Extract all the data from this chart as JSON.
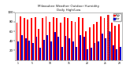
{
  "title": "Milwaukee Weather Outdoor Humidity",
  "subtitle": "Daily High/Low",
  "high_color": "#ff0000",
  "low_color": "#0000cc",
  "bg_color": "#ffffff",
  "ylim": [
    0,
    100
  ],
  "yticks": [
    20,
    40,
    60,
    80,
    100
  ],
  "bar_width": 0.4,
  "highs": [
    78,
    92,
    88,
    85,
    88,
    90,
    65,
    88,
    92,
    80,
    90,
    88,
    78,
    90,
    88,
    82,
    80,
    90,
    88,
    60,
    68,
    75,
    80,
    92,
    88,
    95,
    78,
    72,
    75
  ],
  "lows": [
    38,
    52,
    45,
    40,
    35,
    48,
    25,
    42,
    52,
    38,
    58,
    48,
    28,
    50,
    45,
    38,
    28,
    52,
    48,
    22,
    25,
    35,
    38,
    55,
    45,
    60,
    30,
    22,
    28
  ],
  "xlabels": [
    "1",
    "",
    "",
    "",
    "5",
    "",
    "",
    "",
    "",
    "10",
    "",
    "",
    "",
    "",
    "15",
    "",
    "",
    "",
    "",
    "20",
    "",
    "",
    "",
    "",
    "25",
    "",
    "",
    "",
    "29"
  ],
  "legend_high": "High",
  "legend_low": "Low",
  "highlight_index": 25
}
